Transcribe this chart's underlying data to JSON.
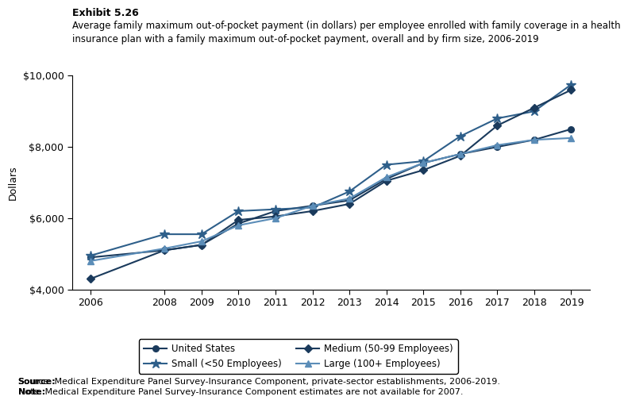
{
  "years": [
    2006,
    2008,
    2009,
    2010,
    2011,
    2012,
    2013,
    2014,
    2015,
    2016,
    2017,
    2018,
    2019
  ],
  "united_states": [
    4900,
    5100,
    5250,
    5850,
    6200,
    6350,
    6500,
    7100,
    7550,
    7800,
    8000,
    8200,
    8500
  ],
  "small": [
    4950,
    5550,
    5550,
    6200,
    6250,
    6300,
    6750,
    7500,
    7600,
    8300,
    8800,
    9000,
    9750
  ],
  "medium": [
    4300,
    5100,
    5250,
    5950,
    6050,
    6200,
    6400,
    7050,
    7350,
    7750,
    8600,
    9100,
    9600
  ],
  "large": [
    4800,
    5150,
    5350,
    5800,
    6000,
    6350,
    6550,
    7150,
    7550,
    7800,
    8050,
    8200,
    8250
  ],
  "color_us": "#1a3a5c",
  "color_small": "#2e5f8a",
  "color_medium": "#1a3a5c",
  "color_large": "#5b8db8",
  "title_exhibit": "Exhibit 5.26",
  "title_main": "Average family maximum out-of-pocket payment (in dollars) per employee enrolled with family coverage in a health\ninsurance plan with a family maximum out-of-pocket payment, overall and by firm size, 2006-2019",
  "ylabel": "Dollars",
  "ylim": [
    4000,
    10000
  ],
  "yticks": [
    4000,
    6000,
    8000,
    10000
  ],
  "source_text": "Source: Medical Expenditure Panel Survey-Insurance Component, private-sector establishments, 2006-2019.",
  "note_text": "Note: Medical Expenditure Panel Survey-Insurance Component estimates are not available for 2007."
}
